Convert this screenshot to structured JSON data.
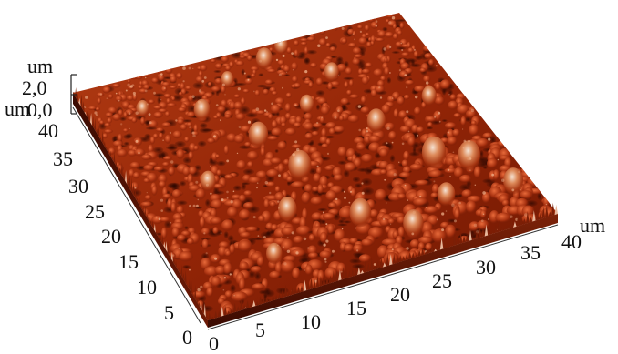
{
  "figure": {
    "description_type": "AFM 3D surface topography",
    "surface_colors": {
      "dark": "#3a0a00",
      "mid": "#9a2a0a",
      "bright": "#d2582a",
      "highlight": "#f1d9c6"
    }
  },
  "axes": {
    "x": {
      "unit": "um",
      "ticks": [
        "0",
        "5",
        "10",
        "15",
        "20",
        "25",
        "30",
        "35",
        "40"
      ]
    },
    "y": {
      "unit": "um",
      "ticks": [
        "0",
        "5",
        "10",
        "15",
        "20",
        "25",
        "30",
        "35",
        "40"
      ]
    },
    "z": {
      "unit": "um",
      "ticks": [
        "2,0",
        "0,0"
      ]
    }
  }
}
